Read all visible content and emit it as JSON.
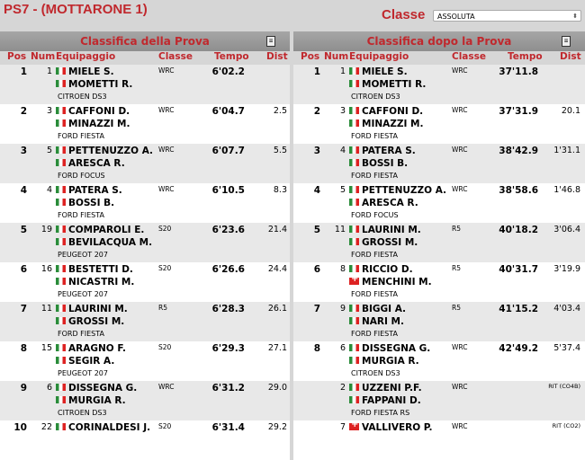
{
  "title": "PS7 - (MOTTARONE 1)",
  "classe_label": "Classe",
  "classe_value": "ASSOLUTA",
  "headers": {
    "pos": "Pos",
    "num": "Num",
    "equipaggio": "Equipaggio",
    "classe": "Classe",
    "tempo": "Tempo",
    "dist": "Dist"
  },
  "left": {
    "title": "Classifica della Prova",
    "icon": "print-icon",
    "rows": [
      {
        "pos": "1",
        "num": "1",
        "d1": "MIELE S.",
        "f1": "it",
        "d2": "MOMETTI R.",
        "f2": "it",
        "car": "CITROEN DS3",
        "cls": "WRC",
        "time": "6'02.2",
        "dist": ""
      },
      {
        "pos": "2",
        "num": "3",
        "d1": "CAFFONI D.",
        "f1": "it",
        "d2": "MINAZZI M.",
        "f2": "it",
        "car": "FORD FIESTA",
        "cls": "WRC",
        "time": "6'04.7",
        "dist": "2.5"
      },
      {
        "pos": "3",
        "num": "5",
        "d1": "PETTENUZZO A.",
        "f1": "it",
        "d2": "ARESCA R.",
        "f2": "it",
        "car": "FORD FOCUS",
        "cls": "WRC",
        "time": "6'07.7",
        "dist": "5.5"
      },
      {
        "pos": "4",
        "num": "4",
        "d1": "PATERA S.",
        "f1": "it",
        "d2": "BOSSI B.",
        "f2": "it",
        "car": "FORD FIESTA",
        "cls": "WRC",
        "time": "6'10.5",
        "dist": "8.3"
      },
      {
        "pos": "5",
        "num": "19",
        "d1": "COMPAROLI E.",
        "f1": "it",
        "d2": "BEVILACQUA M.",
        "f2": "it",
        "car": "PEUGEOT 207",
        "cls": "S20",
        "time": "6'23.6",
        "dist": "21.4"
      },
      {
        "pos": "6",
        "num": "16",
        "d1": "BESTETTI D.",
        "f1": "it",
        "d2": "NICASTRI M.",
        "f2": "it",
        "car": "PEUGEOT 207",
        "cls": "S20",
        "time": "6'26.6",
        "dist": "24.4"
      },
      {
        "pos": "7",
        "num": "11",
        "d1": "LAURINI M.",
        "f1": "it",
        "d2": "GROSSI M.",
        "f2": "it",
        "car": "FORD FIESTA",
        "cls": "R5",
        "time": "6'28.3",
        "dist": "26.1"
      },
      {
        "pos": "8",
        "num": "15",
        "d1": "ARAGNO F.",
        "f1": "it",
        "d2": "SEGIR A.",
        "f2": "it",
        "car": "PEUGEOT 207",
        "cls": "S20",
        "time": "6'29.3",
        "dist": "27.1"
      },
      {
        "pos": "9",
        "num": "6",
        "d1": "DISSEGNA G.",
        "f1": "it",
        "d2": "MURGIA R.",
        "f2": "it",
        "car": "CITROEN DS3",
        "cls": "WRC",
        "time": "6'31.2",
        "dist": "29.0"
      },
      {
        "pos": "10",
        "num": "22",
        "d1": "CORINALDESI J.",
        "f1": "it",
        "d2": "",
        "f2": "",
        "car": "",
        "cls": "S20",
        "time": "6'31.4",
        "dist": "29.2"
      }
    ]
  },
  "right": {
    "title": "Classifica dopo la Prova",
    "icon": "print-icon",
    "rows": [
      {
        "pos": "1",
        "num": "1",
        "d1": "MIELE S.",
        "f1": "it",
        "d2": "MOMETTI R.",
        "f2": "it",
        "car": "CITROEN DS3",
        "cls": "WRC",
        "time": "37'11.8",
        "dist": ""
      },
      {
        "pos": "2",
        "num": "3",
        "d1": "CAFFONI D.",
        "f1": "it",
        "d2": "MINAZZI M.",
        "f2": "it",
        "car": "FORD FIESTA",
        "cls": "WRC",
        "time": "37'31.9",
        "dist": "20.1"
      },
      {
        "pos": "3",
        "num": "4",
        "d1": "PATERA S.",
        "f1": "it",
        "d2": "BOSSI B.",
        "f2": "it",
        "car": "FORD FIESTA",
        "cls": "WRC",
        "time": "38'42.9",
        "dist": "1'31.1"
      },
      {
        "pos": "4",
        "num": "5",
        "d1": "PETTENUZZO A.",
        "f1": "it",
        "d2": "ARESCA R.",
        "f2": "it",
        "car": "FORD FOCUS",
        "cls": "WRC",
        "time": "38'58.6",
        "dist": "1'46.8"
      },
      {
        "pos": "5",
        "num": "11",
        "d1": "LAURINI M.",
        "f1": "it",
        "d2": "GROSSI M.",
        "f2": "it",
        "car": "FORD FIESTA",
        "cls": "R5",
        "time": "40'18.2",
        "dist": "3'06.4"
      },
      {
        "pos": "6",
        "num": "8",
        "d1": "RICCIO D.",
        "f1": "it",
        "d2": "MENCHINI M.",
        "f2": "ch",
        "car": "FORD FIESTA",
        "cls": "R5",
        "time": "40'31.7",
        "dist": "3'19.9"
      },
      {
        "pos": "7",
        "num": "9",
        "d1": "BIGGI A.",
        "f1": "it",
        "d2": "NARI M.",
        "f2": "it",
        "car": "FORD FIESTA",
        "cls": "R5",
        "time": "41'15.2",
        "dist": "4'03.4"
      },
      {
        "pos": "8",
        "num": "6",
        "d1": "DISSEGNA G.",
        "f1": "it",
        "d2": "MURGIA R.",
        "f2": "it",
        "car": "CITROEN DS3",
        "cls": "WRC",
        "time": "42'49.2",
        "dist": "5'37.4"
      },
      {
        "pos": "",
        "num": "2",
        "d1": "UZZENI P.F.",
        "f1": "it",
        "d2": "FAPPANI D.",
        "f2": "it",
        "car": "FORD FIESTA RS",
        "cls": "WRC",
        "time": "",
        "dist": "RIT (CO4B)"
      },
      {
        "pos": "",
        "num": "7",
        "d1": "VALLIVERO P.",
        "f1": "ch",
        "d2": "",
        "f2": "",
        "car": "",
        "cls": "WRC",
        "time": "",
        "dist": "RIT (CO2)"
      }
    ]
  }
}
